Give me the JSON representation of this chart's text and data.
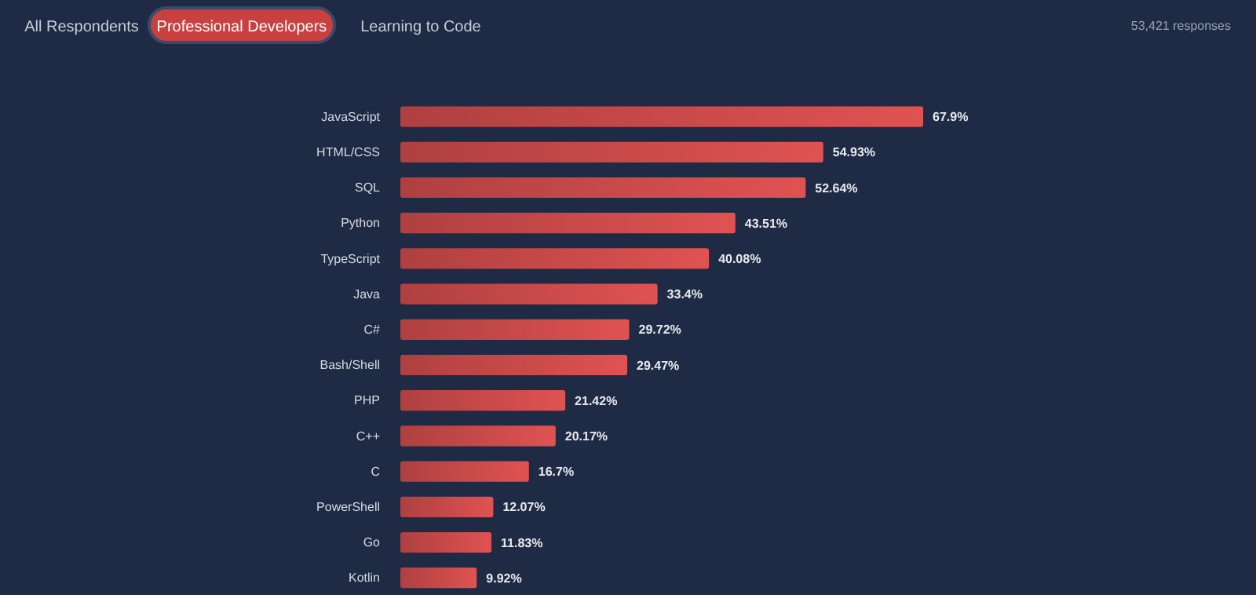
{
  "chart_data": {
    "type": "bar",
    "orientation": "horizontal",
    "categories": [
      "JavaScript",
      "HTML/CSS",
      "SQL",
      "Python",
      "TypeScript",
      "Java",
      "C#",
      "Bash/Shell",
      "PHP",
      "C++",
      "C",
      "PowerShell",
      "Go",
      "Kotlin"
    ],
    "values": [
      67.9,
      54.93,
      52.64,
      43.51,
      40.08,
      33.4,
      29.72,
      29.47,
      21.42,
      20.17,
      16.7,
      12.07,
      11.83,
      9.92
    ],
    "value_labels": [
      "67.9%",
      "54.93%",
      "52.64%",
      "43.51%",
      "40.08%",
      "33.4%",
      "29.72%",
      "29.47%",
      "21.42%",
      "20.17%",
      "16.7%",
      "12.07%",
      "11.83%",
      "9.92%"
    ],
    "color": "#e05252",
    "tick_labels": "y",
    "annotations": [
      "All Respondents",
      "Professional Developers",
      "Learning to Code",
      "53,421 responses"
    ]
  }
}
